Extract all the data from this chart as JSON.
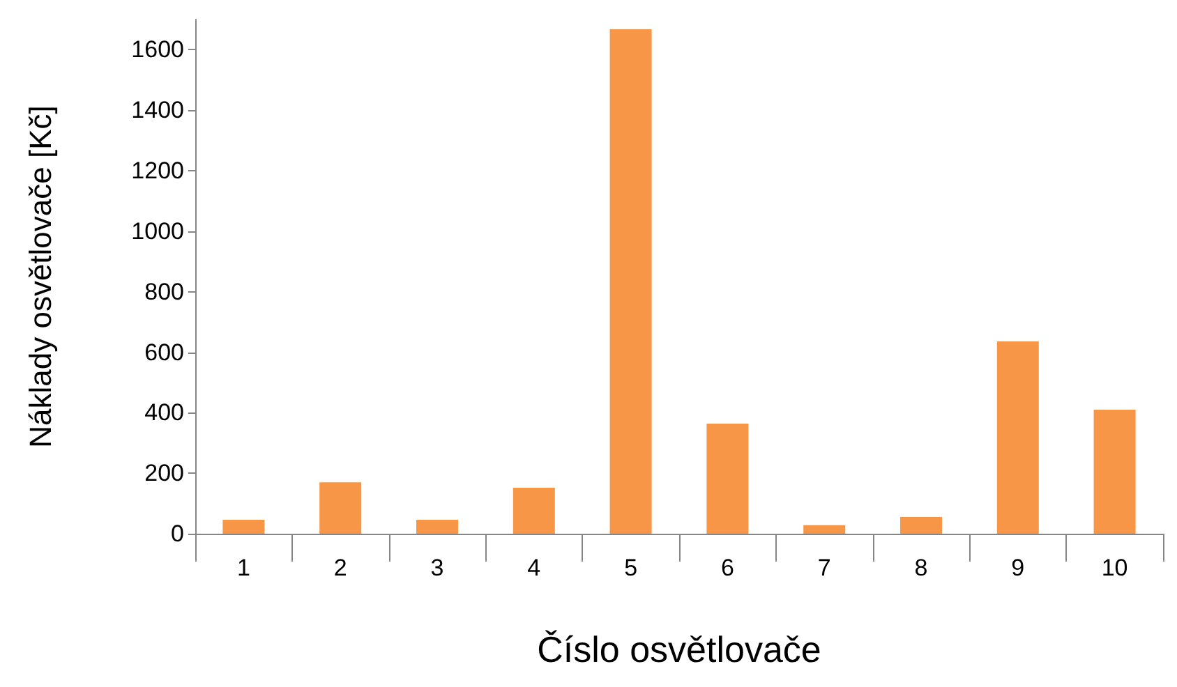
{
  "chart_data": {
    "type": "bar",
    "xlabel": "Číslo osvětlovače",
    "ylabel": "Náklady osvětlovače [Kč]",
    "categories": [
      "1",
      "2",
      "3",
      "4",
      "5",
      "6",
      "7",
      "8",
      "9",
      "10"
    ],
    "values": [
      46,
      170,
      46,
      152,
      1668,
      364,
      28,
      55,
      636,
      410
    ],
    "color": "#f79646",
    "ylim": [
      0,
      1700
    ],
    "yticks": [
      0,
      200,
      400,
      600,
      800,
      1000,
      1200,
      1400,
      1600
    ],
    "grid": false
  }
}
